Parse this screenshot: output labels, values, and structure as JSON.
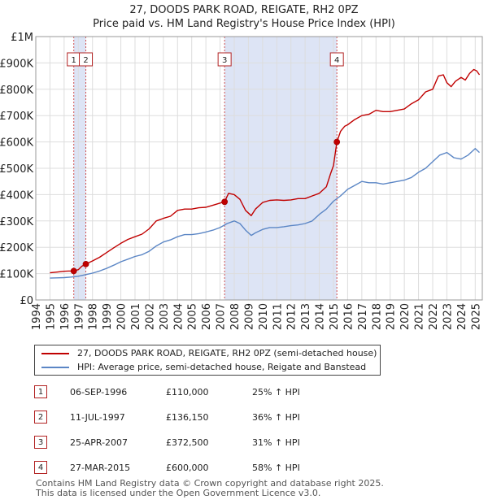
{
  "header": {
    "title": "27, DOODS PARK ROAD, REIGATE, RH2 0PZ",
    "subtitle": "Price paid vs. HM Land Registry's House Price Index (HPI)"
  },
  "chart_data": {
    "type": "line",
    "title": "27, DOODS PARK ROAD, REIGATE, RH2 0PZ",
    "subtitle": "Price paid vs. HM Land Registry's House Price Index (HPI)",
    "xlim": [
      1994,
      2025.5
    ],
    "ylim": [
      0,
      1000000
    ],
    "x_ticks": [
      1994,
      1995,
      1996,
      1997,
      1998,
      1999,
      2000,
      2001,
      2002,
      2003,
      2004,
      2005,
      2006,
      2007,
      2008,
      2009,
      2010,
      2011,
      2012,
      2013,
      2014,
      2015,
      2016,
      2017,
      2018,
      2019,
      2020,
      2021,
      2022,
      2023,
      2024,
      2025
    ],
    "x_tick_labels": [
      "1994",
      "1995",
      "1996",
      "1997",
      "1998",
      "1999",
      "2000",
      "2001",
      "2002",
      "2003",
      "2004",
      "2005",
      "2006",
      "2007",
      "2008",
      "2009",
      "2010",
      "2011",
      "2012",
      "2013",
      "2014",
      "2015",
      "2016",
      "2017",
      "2018",
      "2019",
      "2020",
      "2021",
      "2022",
      "2023",
      "2024",
      "2025"
    ],
    "y_ticks": [
      0,
      100000,
      200000,
      300000,
      400000,
      500000,
      600000,
      700000,
      800000,
      900000,
      1000000
    ],
    "y_tick_labels": [
      "£0",
      "£100K",
      "£200K",
      "£300K",
      "£400K",
      "£500K",
      "£600K",
      "£700K",
      "£800K",
      "£900K",
      "£1M"
    ],
    "series": [
      {
        "name": "27, DOODS PARK ROAD, REIGATE, RH2 0PZ (semi-detached house)",
        "color": "#c00000",
        "x": [
          1995.0,
          1995.5,
          1996.0,
          1996.3,
          1996.68,
          1997.0,
          1997.25,
          1997.53,
          1998.0,
          1998.5,
          1999.0,
          1999.5,
          2000.0,
          2000.5,
          2001.0,
          2001.5,
          2002.0,
          2002.5,
          2003.0,
          2003.5,
          2004.0,
          2004.5,
          2005.0,
          2005.5,
          2006.0,
          2006.5,
          2007.0,
          2007.32,
          2007.6,
          2008.0,
          2008.4,
          2008.8,
          2009.2,
          2009.5,
          2010.0,
          2010.5,
          2011.0,
          2011.5,
          2012.0,
          2012.5,
          2013.0,
          2013.5,
          2014.0,
          2014.5,
          2014.8,
          2015.0,
          2015.24,
          2015.5,
          2015.8,
          2016.0,
          2016.5,
          2017.0,
          2017.5,
          2018.0,
          2018.5,
          2019.0,
          2019.5,
          2020.0,
          2020.5,
          2021.0,
          2021.5,
          2022.0,
          2022.4,
          2022.75,
          2023.0,
          2023.3,
          2023.6,
          2024.0,
          2024.3,
          2024.6,
          2024.9,
          2025.1,
          2025.3
        ],
        "values": [
          103000,
          106000,
          109000,
          110000,
          110000,
          115000,
          128000,
          136150,
          148000,
          162000,
          180000,
          198000,
          215000,
          230000,
          240000,
          250000,
          270000,
          300000,
          310000,
          318000,
          340000,
          345000,
          345000,
          350000,
          352000,
          360000,
          368000,
          372500,
          405000,
          400000,
          382000,
          340000,
          320000,
          345000,
          370000,
          378000,
          380000,
          378000,
          380000,
          385000,
          385000,
          395000,
          405000,
          430000,
          480000,
          510000,
          600000,
          640000,
          660000,
          665000,
          685000,
          700000,
          705000,
          720000,
          715000,
          715000,
          720000,
          725000,
          745000,
          760000,
          790000,
          800000,
          850000,
          855000,
          825000,
          810000,
          830000,
          845000,
          835000,
          860000,
          875000,
          870000,
          855000
        ]
      },
      {
        "name": "HPI: Average price, semi-detached house, Reigate and Banstead",
        "color": "#5b86c5",
        "x": [
          1995.0,
          1995.5,
          1996.0,
          1996.5,
          1997.0,
          1997.5,
          1998.0,
          1998.5,
          1999.0,
          1999.5,
          2000.0,
          2000.5,
          2001.0,
          2001.5,
          2002.0,
          2002.5,
          2003.0,
          2003.5,
          2004.0,
          2004.5,
          2005.0,
          2005.5,
          2006.0,
          2006.5,
          2007.0,
          2007.5,
          2008.0,
          2008.4,
          2008.8,
          2009.2,
          2009.5,
          2010.0,
          2010.5,
          2011.0,
          2011.5,
          2012.0,
          2012.5,
          2013.0,
          2013.5,
          2014.0,
          2014.5,
          2015.0,
          2015.5,
          2016.0,
          2016.5,
          2017.0,
          2017.5,
          2018.0,
          2018.5,
          2019.0,
          2019.5,
          2020.0,
          2020.5,
          2021.0,
          2021.5,
          2022.0,
          2022.5,
          2023.0,
          2023.5,
          2024.0,
          2024.5,
          2025.0,
          2025.3
        ],
        "values": [
          83000,
          84000,
          85000,
          87000,
          90000,
          96000,
          102000,
          110000,
          120000,
          132000,
          145000,
          155000,
          165000,
          172000,
          185000,
          205000,
          220000,
          228000,
          240000,
          248000,
          248000,
          252000,
          258000,
          265000,
          275000,
          290000,
          300000,
          290000,
          265000,
          245000,
          255000,
          268000,
          275000,
          275000,
          278000,
          282000,
          285000,
          290000,
          300000,
          325000,
          345000,
          375000,
          395000,
          420000,
          435000,
          450000,
          445000,
          445000,
          440000,
          445000,
          450000,
          455000,
          465000,
          485000,
          500000,
          525000,
          550000,
          560000,
          540000,
          535000,
          550000,
          575000,
          560000
        ]
      }
    ],
    "sales": [
      {
        "label": "1",
        "x": 1996.68,
        "value": 110000,
        "date": "06-SEP-1996",
        "price": "£110,000",
        "hpi": "25% ↑ HPI"
      },
      {
        "label": "2",
        "x": 1997.53,
        "value": 136150,
        "date": "11-JUL-1997",
        "price": "£136,150",
        "hpi": "36% ↑ HPI"
      },
      {
        "label": "3",
        "x": 2007.32,
        "value": 372500,
        "date": "25-APR-2007",
        "price": "£372,500",
        "hpi": "31% ↑ HPI"
      },
      {
        "label": "4",
        "x": 2015.24,
        "value": 600000,
        "date": "27-MAR-2015",
        "price": "£600,000",
        "hpi": "58% ↑ HPI"
      }
    ],
    "shaded_ranges": [
      [
        1996.68,
        1997.53
      ],
      [
        2007.32,
        2015.24
      ]
    ],
    "grid": true,
    "legend_position": "bottom"
  },
  "legend": {
    "property_label": "27, DOODS PARK ROAD, REIGATE, RH2 0PZ (semi-detached house)",
    "hpi_label": "HPI: Average price, semi-detached house, Reigate and Banstead"
  },
  "table": {
    "rows": [
      {
        "num": "1",
        "date": "06-SEP-1996",
        "price": "£110,000",
        "hpi": "25% ↑ HPI"
      },
      {
        "num": "2",
        "date": "11-JUL-1997",
        "price": "£136,150",
        "hpi": "36% ↑ HPI"
      },
      {
        "num": "3",
        "date": "25-APR-2007",
        "price": "£372,500",
        "hpi": "31% ↑ HPI"
      },
      {
        "num": "4",
        "date": "27-MAR-2015",
        "price": "£600,000",
        "hpi": "58% ↑ HPI"
      }
    ]
  },
  "footer": {
    "line1": "Contains HM Land Registry data © Crown copyright and database right 2025.",
    "line2": "This data is licensed under the Open Government Licence v3.0."
  },
  "colors": {
    "property_line": "#c00000",
    "hpi_line": "#5b86c5",
    "shade": "#dde4f5",
    "grid": "#dddddd"
  }
}
